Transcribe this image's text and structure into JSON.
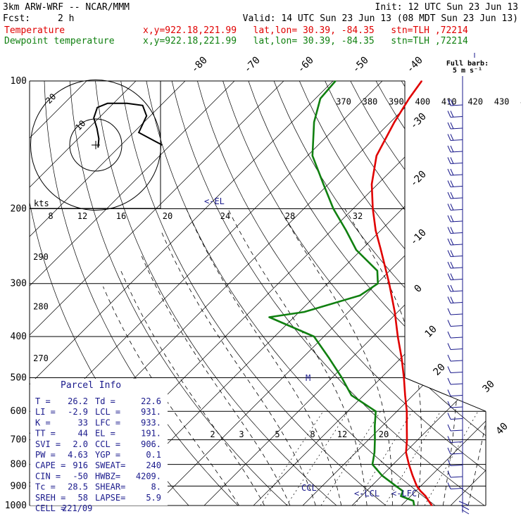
{
  "header": {
    "model": "3km ARW-WRF -- NCAR/MMM",
    "init": "Init: 12 UTC Sun 23 Jun 13",
    "fcst_label": "Fcst:",
    "fcst_value": "2 h",
    "valid": "Valid: 14 UTC Sun 23 Jun 13 (08 MDT Sun 23 Jun 13)",
    "line1_var": "Temperature",
    "line1_info": "x,y=922.18,221.99   lat,lon= 30.39, -84.35   stn=TLH ,72214",
    "line2_var": "Dewpoint temperature",
    "line2_info": "x,y=922.18,221.99   lat,lon= 30.39, -84.35   stn=TLH ,72214"
  },
  "colors": {
    "temperature": "#e00000",
    "dewpoint": "#108010",
    "annot": "#1a1a8c",
    "parcel_label": "#1a1a8c"
  },
  "barb_key": {
    "line1": "Full barb:",
    "line2": "5 m s⁻¹"
  },
  "hodograph": {
    "ring_labels": [
      "10",
      "20"
    ],
    "units": "kts",
    "path": [
      [
        0.6,
        -1.2
      ],
      [
        0.8,
        3
      ],
      [
        0.3,
        8
      ],
      [
        -0.5,
        13
      ],
      [
        0.4,
        18
      ],
      [
        3,
        20
      ],
      [
        8,
        20
      ],
      [
        12,
        19
      ],
      [
        13,
        14
      ],
      [
        11,
        6
      ],
      [
        15,
        2
      ],
      [
        17,
        0
      ]
    ]
  },
  "parcel_info": {
    "title": "Parcel Info",
    "rows": [
      [
        "T  =",
        "26.2",
        "Td =",
        "22.6"
      ],
      [
        "LI =",
        "-2.9",
        "LCL =",
        "931."
      ],
      [
        "K  =",
        "33",
        "LFC =",
        "933."
      ],
      [
        "TT =",
        "44",
        "EL =",
        "191."
      ],
      [
        "SVI =",
        "2.0",
        "CCL =",
        "906."
      ],
      [
        "PW =",
        "4.63",
        "YGP =",
        "0.1"
      ],
      [
        "CAPE =",
        "916",
        "SWEAT=",
        "240"
      ],
      [
        "CIN =",
        "-50",
        "HWBZ=",
        "4209."
      ],
      [
        "Tc =",
        "28.5",
        "SHEAR=",
        "8."
      ],
      [
        "SREH =",
        "58",
        "LAPSE=",
        "5.9"
      ],
      [
        "CELL =",
        "221/09",
        "",
        ""
      ]
    ]
  },
  "chart_data": {
    "type": "line",
    "diagram": "skew-T log-p",
    "y_axis": {
      "quantity": "pressure (hPa)",
      "log_scale": true,
      "range": [
        1000,
        100
      ],
      "ticks": [
        100,
        200,
        300,
        400,
        500,
        600,
        700,
        800,
        900,
        1000
      ]
    },
    "x_axis": {
      "quantity": "temperature (°C)",
      "isotherm_labels": [
        -80,
        -70,
        -60,
        -50,
        -40,
        -30,
        -20,
        -10,
        0,
        10,
        20,
        30,
        40
      ]
    },
    "theta_labels": [
      {
        "v": "370",
        "p": 112
      },
      {
        "v": "380",
        "p": 112
      },
      {
        "v": "390",
        "p": 112
      },
      {
        "v": "400",
        "p": 112
      },
      {
        "v": "410",
        "p": 112
      },
      {
        "v": "420",
        "p": 112
      },
      {
        "v": "430",
        "p": 112
      },
      {
        "v": "440",
        "p": 112
      },
      {
        "v": "290",
        "p": 260
      },
      {
        "v": "280",
        "p": 340
      },
      {
        "v": "270",
        "p": 450
      }
    ],
    "mixing_ratio_labels_upper": [
      "8",
      "12",
      "16",
      "20",
      "24",
      "28",
      "32"
    ],
    "mixing_ratio_labels_lower": [
      "2",
      "3",
      "5",
      "8",
      "12",
      "20"
    ],
    "series": [
      {
        "name": "Temperature",
        "points": [
          [
            1000,
            26.2
          ],
          [
            975,
            24.6
          ],
          [
            950,
            23
          ],
          [
            925,
            21
          ],
          [
            900,
            19.2
          ],
          [
            850,
            16.2
          ],
          [
            800,
            13.2
          ],
          [
            750,
            10.2
          ],
          [
            700,
            7.8
          ],
          [
            650,
            5
          ],
          [
            600,
            2
          ],
          [
            550,
            -1.6
          ],
          [
            500,
            -5.4
          ],
          [
            450,
            -9.8
          ],
          [
            400,
            -15
          ],
          [
            350,
            -20.6
          ],
          [
            300,
            -27.5
          ],
          [
            250,
            -36
          ],
          [
            225,
            -41
          ],
          [
            200,
            -46
          ],
          [
            175,
            -51.2
          ],
          [
            150,
            -56
          ],
          [
            125,
            -59.2
          ],
          [
            110,
            -61
          ],
          [
            100,
            -62
          ]
        ]
      },
      {
        "name": "Dewpoint temperature",
        "points": [
          [
            1000,
            22.6
          ],
          [
            975,
            21.5
          ],
          [
            950,
            18
          ],
          [
            925,
            17.4
          ],
          [
            900,
            15
          ],
          [
            850,
            10
          ],
          [
            800,
            5.8
          ],
          [
            750,
            3.8
          ],
          [
            700,
            1.3
          ],
          [
            650,
            -1.5
          ],
          [
            600,
            -4.3
          ],
          [
            550,
            -12.5
          ],
          [
            500,
            -18
          ],
          [
            450,
            -24.5
          ],
          [
            400,
            -32
          ],
          [
            360,
            -45
          ],
          [
            350,
            -39
          ],
          [
            320,
            -31
          ],
          [
            300,
            -29.8
          ],
          [
            280,
            -32.5
          ],
          [
            250,
            -41
          ],
          [
            225,
            -47
          ],
          [
            200,
            -54
          ],
          [
            175,
            -61
          ],
          [
            150,
            -69
          ],
          [
            125,
            -75.5
          ],
          [
            110,
            -79
          ],
          [
            100,
            -79.5
          ]
        ]
      }
    ],
    "annotations": [
      {
        "text": "<-EL",
        "p": 191
      },
      {
        "text": "M",
        "p": 500
      },
      {
        "text": "CCL",
        "p": 906
      },
      {
        "text": "<-LCL",
        "p": 931
      },
      {
        "text": "<-LFC",
        "p": 933
      }
    ]
  }
}
